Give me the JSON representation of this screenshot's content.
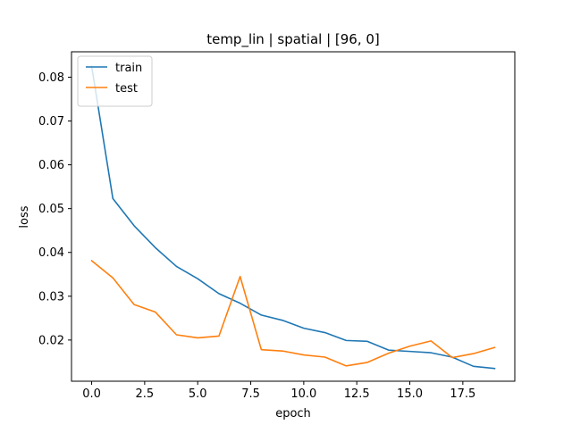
{
  "chart_data": {
    "type": "line",
    "title": "temp_lin | spatial | [96, 0]",
    "xlabel": "epoch",
    "ylabel": "loss",
    "x": [
      0,
      1,
      2,
      3,
      4,
      5,
      6,
      7,
      8,
      9,
      10,
      11,
      12,
      13,
      14,
      15,
      16,
      17,
      18,
      19
    ],
    "xlim": [
      -0.95,
      19.95
    ],
    "ylim": [
      0.0106,
      0.0858
    ],
    "xticks": [
      0.0,
      2.5,
      5.0,
      7.5,
      10.0,
      12.5,
      15.0,
      17.5
    ],
    "xtick_labels": [
      "0.0",
      "2.5",
      "5.0",
      "7.5",
      "10.0",
      "12.5",
      "15.0",
      "17.5"
    ],
    "yticks": [
      0.02,
      0.03,
      0.04,
      0.05,
      0.06,
      0.07,
      0.08
    ],
    "ytick_labels": [
      "0.02",
      "0.03",
      "0.04",
      "0.05",
      "0.06",
      "0.07",
      "0.08"
    ],
    "grid": false,
    "legend_position": "top-left",
    "series": [
      {
        "name": "train",
        "color": "#1f77b4",
        "values": [
          0.0825,
          0.0523,
          0.0461,
          0.0411,
          0.0368,
          0.034,
          0.0306,
          0.0284,
          0.0257,
          0.0245,
          0.0227,
          0.0217,
          0.0199,
          0.0197,
          0.0177,
          0.0174,
          0.0171,
          0.0161,
          0.014,
          0.0135
        ]
      },
      {
        "name": "test",
        "color": "#ff7f0e",
        "values": [
          0.0381,
          0.0342,
          0.0281,
          0.0264,
          0.0212,
          0.0205,
          0.0209,
          0.0345,
          0.0178,
          0.0175,
          0.0166,
          0.0161,
          0.0141,
          0.0149,
          0.017,
          0.0186,
          0.0198,
          0.016,
          0.0169,
          0.0183
        ]
      }
    ]
  }
}
